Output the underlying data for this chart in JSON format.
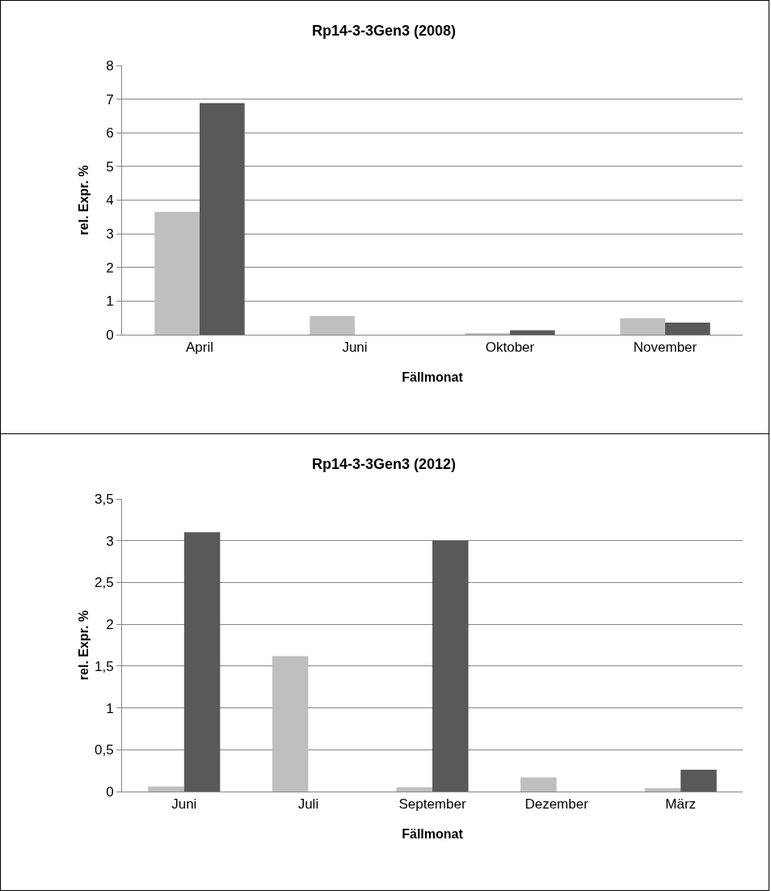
{
  "chart_data": [
    {
      "type": "bar",
      "title": "Rp14-3-3Gen3 (2008)",
      "xlabel": "Fällmonat",
      "ylabel": "rel. Expr. %",
      "categories": [
        "April",
        "Juni",
        "Oktober",
        "November"
      ],
      "series": [
        {
          "color": "#bfbfbf",
          "values": [
            3.65,
            0.56,
            0.05,
            0.49
          ]
        },
        {
          "color": "#595959",
          "values": [
            6.88,
            0,
            0.13,
            0.36
          ]
        }
      ],
      "ylim": [
        0,
        8
      ],
      "yticks": [
        0,
        1,
        2,
        3,
        4,
        5,
        6,
        7,
        8
      ],
      "grid": "y"
    },
    {
      "type": "bar",
      "title": "Rp14-3-3Gen3 (2012)",
      "xlabel": "Fällmonat",
      "ylabel": "rel. Expr. %",
      "categories": [
        "Juni",
        "Juli",
        "September",
        "Dezember",
        "März"
      ],
      "series": [
        {
          "color": "#bfbfbf",
          "values": [
            0.06,
            1.62,
            0.05,
            0.17,
            0.04
          ]
        },
        {
          "color": "#595959",
          "values": [
            3.1,
            0,
            3.0,
            0,
            0.26
          ]
        }
      ],
      "ylim": [
        0,
        3.5
      ],
      "yticks": [
        0,
        {
          "value": 0.5,
          "label": "0,5"
        },
        1,
        {
          "value": 1.5,
          "label": "1,5"
        },
        2,
        {
          "value": 2.5,
          "label": "2,5"
        },
        3,
        {
          "value": 3.5,
          "label": "3,5"
        }
      ],
      "grid": "y"
    }
  ]
}
